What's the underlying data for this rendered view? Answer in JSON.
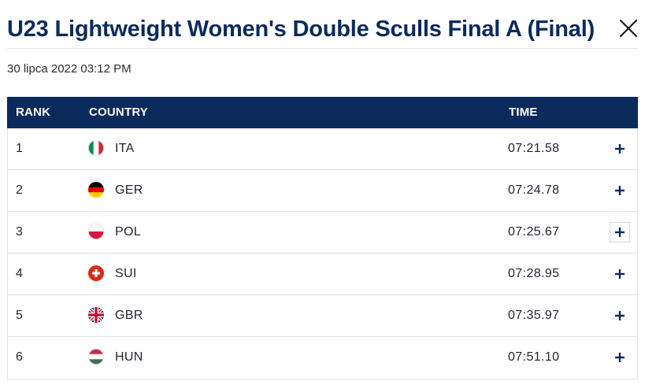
{
  "modal": {
    "title": "U23 Lightweight Women's Double Sculls Final A (Final)",
    "datetime": "30 lipca 2022 03:12 PM",
    "close_icon": "close-icon"
  },
  "table": {
    "headers": {
      "rank": "RANK",
      "country": "COUNTRY",
      "time": "TIME"
    },
    "rows": [
      {
        "rank": "1",
        "country": "ITA",
        "time": "07:21.58",
        "flag_icon": "italy-flag-icon"
      },
      {
        "rank": "2",
        "country": "GER",
        "time": "07:24.78",
        "flag_icon": "germany-flag-icon"
      },
      {
        "rank": "3",
        "country": "POL",
        "time": "07:25.67",
        "flag_icon": "poland-flag-icon"
      },
      {
        "rank": "4",
        "country": "SUI",
        "time": "07:28.95",
        "flag_icon": "switzerland-flag-icon"
      },
      {
        "rank": "5",
        "country": "GBR",
        "time": "07:35.97",
        "flag_icon": "great-britain-flag-icon"
      },
      {
        "rank": "6",
        "country": "HUN",
        "time": "07:51.10",
        "flag_icon": "hungary-flag-icon"
      }
    ],
    "expand_icon": "plus-icon"
  },
  "colors": {
    "brand_navy": "#0b2a5c",
    "row_border": "#dfe3e8",
    "header_text": "#ffffff"
  }
}
